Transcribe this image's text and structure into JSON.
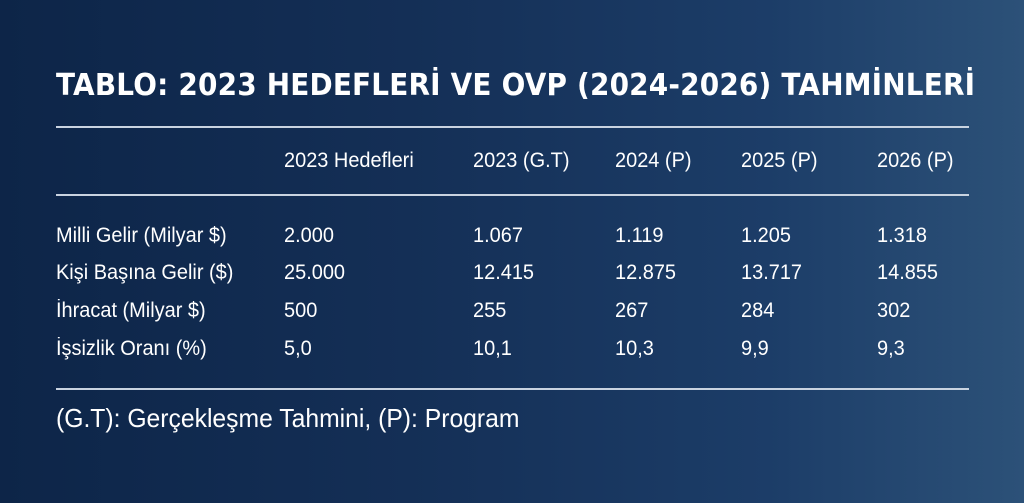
{
  "title": "TABLO: 2023 HEDEFLERİ VE OVP (2024-2026) TAHMİNLERİ",
  "chart_data": {
    "type": "table",
    "title": "TABLO: 2023 HEDEFLERİ VE OVP (2024-2026) TAHMİNLERİ",
    "columns": [
      "",
      "2023 Hedefleri",
      "2023 (G.T)",
      "2024 (P)",
      "2025 (P)",
      "2026 (P)"
    ],
    "rows": [
      [
        "Milli Gelir (Milyar $)",
        "2.000",
        "1.067",
        "1.119",
        "1.205",
        "1.318"
      ],
      [
        "Kişi Başına Gelir ($)",
        "25.000",
        "12.415",
        "12.875",
        "13.717",
        "14.855"
      ],
      [
        "İhracat (Milyar $)",
        "500",
        "255",
        "267",
        "284",
        "302"
      ],
      [
        "İşsizlik Oranı (%)",
        "5,0",
        "10,1",
        "10,3",
        "9,9",
        "9,3"
      ]
    ]
  },
  "footnote": "(G.T): Gerçekleşme Tahmini, (P): Program",
  "colors": {
    "background_left": "#0d2548",
    "background_right": "#2c5178",
    "text": "#ffffff",
    "rule": "#c9d3e0"
  }
}
